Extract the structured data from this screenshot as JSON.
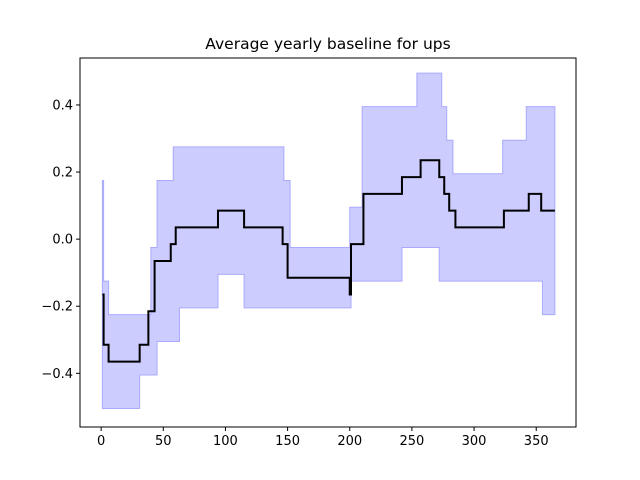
{
  "chart_data": {
    "type": "line",
    "title": "Average yearly baseline for ups",
    "xlabel": "",
    "ylabel": "",
    "xlim": [
      -17,
      382
    ],
    "ylim": [
      -0.56,
      0.54
    ],
    "xticks": [
      0,
      50,
      100,
      150,
      200,
      250,
      300,
      350
    ],
    "yticks": [
      -0.4,
      -0.2,
      0.0,
      0.2,
      0.4
    ],
    "ytick_labels": [
      "−0.4",
      "−0.2",
      "0.0",
      "0.2",
      "0.4"
    ],
    "grid": false,
    "legend": "none",
    "colors": {
      "line": "#000000",
      "band_fill": "#ccccff",
      "band_edge": "#aaaaff"
    },
    "series": [
      {
        "kind": "line",
        "x": [
          1,
          2,
          2,
          6,
          6,
          31,
          31,
          38,
          38,
          43,
          43,
          51,
          51,
          56,
          56,
          60,
          60,
          63,
          63,
          94,
          94,
          115,
          115,
          146,
          146,
          150,
          150,
          200,
          200,
          201,
          201,
          211,
          211,
          242,
          242,
          257,
          257,
          272,
          272,
          276,
          276,
          280,
          280,
          285,
          285,
          324,
          324,
          344,
          344,
          354,
          354,
          365
        ],
        "y": [
          -0.165,
          -0.165,
          -0.315,
          -0.315,
          -0.365,
          -0.365,
          -0.315,
          -0.315,
          -0.215,
          -0.215,
          -0.065,
          -0.065,
          -0.065,
          -0.065,
          -0.015,
          -0.015,
          0.035,
          0.035,
          0.035,
          0.035,
          0.085,
          0.085,
          0.035,
          0.035,
          -0.015,
          -0.015,
          -0.115,
          -0.115,
          -0.165,
          -0.165,
          -0.015,
          -0.015,
          0.135,
          0.135,
          0.185,
          0.185,
          0.235,
          0.235,
          0.185,
          0.185,
          0.135,
          0.135,
          0.085,
          0.085,
          0.035,
          0.035,
          0.085,
          0.085,
          0.135,
          0.135,
          0.085,
          0.085
        ]
      },
      {
        "kind": "band",
        "upper": {
          "x": [
            1,
            2,
            2,
            6,
            6,
            40,
            40,
            45,
            45,
            55,
            55,
            58,
            58,
            147,
            147,
            152,
            152,
            200,
            200,
            210,
            210,
            254,
            254,
            274,
            274,
            278,
            278,
            283,
            283,
            286,
            286,
            323,
            323,
            342,
            342,
            365
          ],
          "y": [
            0.175,
            0.175,
            -0.125,
            -0.125,
            -0.225,
            -0.225,
            -0.025,
            -0.025,
            0.175,
            0.175,
            0.175,
            0.175,
            0.275,
            0.275,
            0.175,
            0.175,
            -0.025,
            -0.025,
            0.095,
            0.095,
            0.395,
            0.395,
            0.495,
            0.495,
            0.395,
            0.395,
            0.295,
            0.295,
            0.195,
            0.195,
            0.195,
            0.195,
            0.295,
            0.295,
            0.395,
            0.395
          ]
        },
        "lower": {
          "x": [
            1,
            31,
            31,
            45,
            45,
            63,
            63,
            94,
            94,
            115,
            115,
            200,
            200,
            201,
            201,
            242,
            242,
            272,
            272,
            355,
            355,
            365
          ],
          "y": [
            -0.505,
            -0.505,
            -0.405,
            -0.405,
            -0.305,
            -0.305,
            -0.205,
            -0.205,
            -0.105,
            -0.105,
            -0.205,
            -0.205,
            -0.205,
            -0.205,
            -0.125,
            -0.125,
            -0.025,
            -0.025,
            -0.125,
            -0.125,
            -0.225,
            -0.225
          ]
        }
      }
    ]
  }
}
